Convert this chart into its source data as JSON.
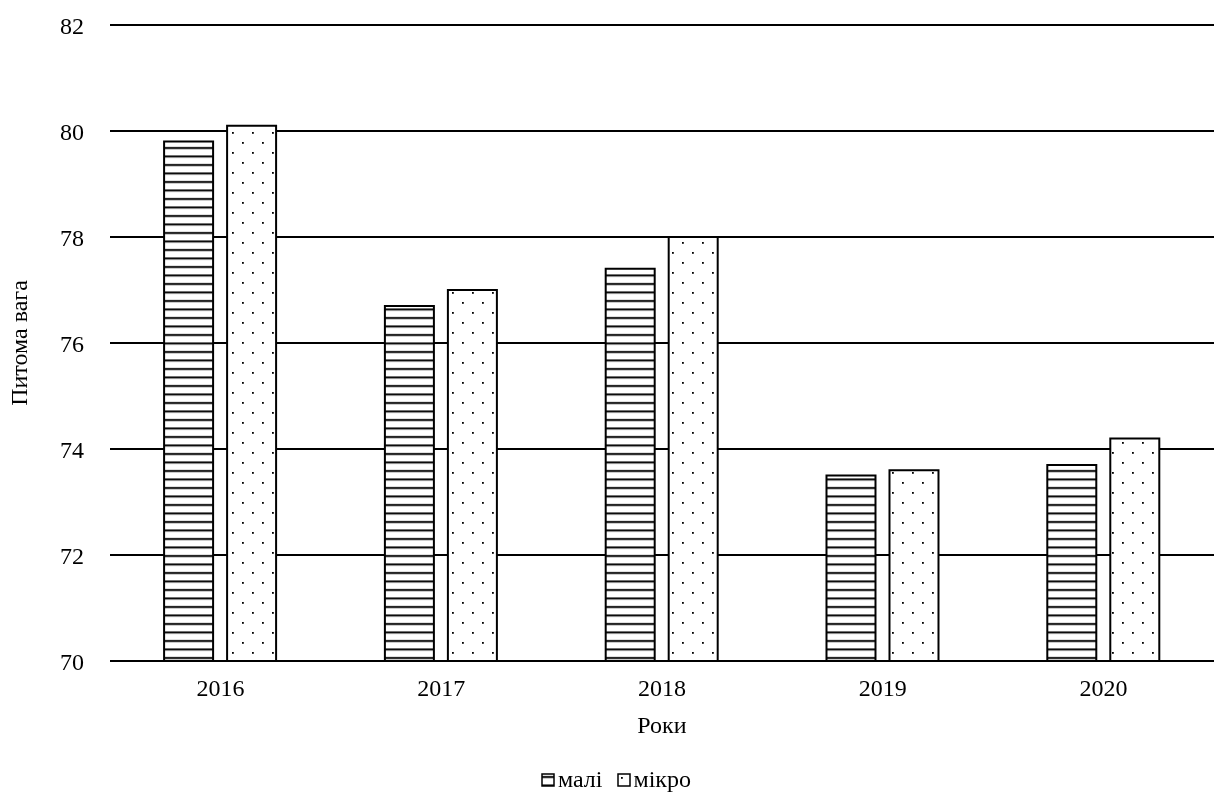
{
  "chart_data": {
    "type": "bar",
    "xlabel": "Роки",
    "ylabel": "Питома вага",
    "categories": [
      "2016",
      "2017",
      "2018",
      "2019",
      "2020"
    ],
    "series": [
      {
        "name": "малі",
        "color": "#000000",
        "values": [
          79.8,
          76.7,
          77.4,
          73.5,
          73.7
        ]
      },
      {
        "name": "мікро",
        "color": "#000000",
        "values": [
          80.1,
          77.0,
          78.0,
          73.6,
          74.2
        ]
      }
    ],
    "ylim": [
      70,
      82
    ],
    "yticks": [
      70,
      72,
      74,
      76,
      78,
      80,
      82
    ],
    "grid": "y",
    "legend": "bottom"
  }
}
